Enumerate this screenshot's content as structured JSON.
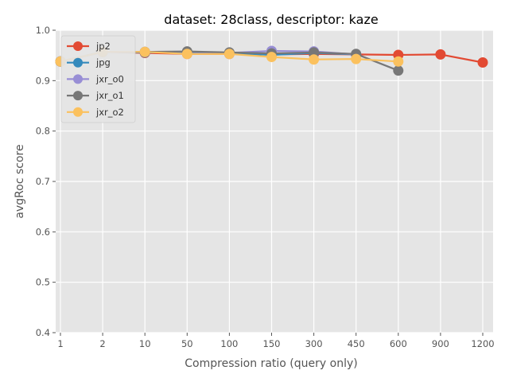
{
  "chart_data": {
    "type": "line",
    "title": "dataset: 28class, descriptor: kaze",
    "xlabel": "Compression ratio (query only)",
    "ylabel": "avgRoc score",
    "categories": [
      "1",
      "2",
      "10",
      "50",
      "100",
      "150",
      "300",
      "450",
      "600",
      "900",
      "1200"
    ],
    "ylim": [
      0.4,
      1.0
    ],
    "yticks": [
      "0.4",
      "0.5",
      "0.6",
      "0.7",
      "0.8",
      "0.9",
      "1.0"
    ],
    "grid": true,
    "legend": "top-left",
    "series": [
      {
        "name": "jp2",
        "color": "#E24A33",
        "values": [
          0.938,
          0.957,
          0.955,
          0.953,
          0.953,
          0.952,
          0.953,
          0.952,
          0.951,
          0.952,
          0.936
        ]
      },
      {
        "name": "jpg",
        "color": "#348ABD",
        "values": [
          0.938,
          0.957,
          0.956,
          0.956,
          0.955,
          0.951,
          0.955,
          0.952,
          null,
          null,
          null
        ]
      },
      {
        "name": "jxr_o0",
        "color": "#988ED5",
        "values": [
          0.938,
          0.957,
          0.957,
          0.957,
          0.955,
          0.959,
          0.958,
          0.952,
          null,
          null,
          null
        ]
      },
      {
        "name": "jxr_o1",
        "color": "#777777",
        "values": [
          0.938,
          0.957,
          0.957,
          0.958,
          0.956,
          0.954,
          0.956,
          0.953,
          0.92,
          null,
          null
        ]
      },
      {
        "name": "jxr_o2",
        "color": "#FBC15E",
        "values": [
          0.938,
          0.957,
          0.957,
          0.953,
          0.953,
          0.947,
          0.942,
          0.943,
          0.938,
          null,
          null
        ]
      }
    ]
  }
}
